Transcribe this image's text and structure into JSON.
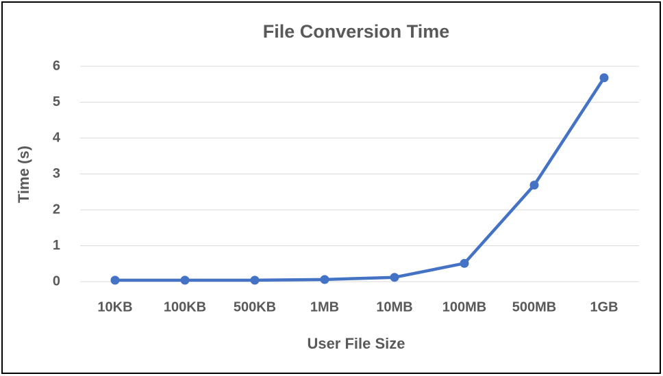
{
  "chart_data": {
    "type": "line",
    "title": "File Conversion Time",
    "x_label": "User File Size",
    "y_label": "Time (s)",
    "categories": [
      "10KB",
      "100KB",
      "500KB",
      "1MB",
      "10MB",
      "100MB",
      "500MB",
      "1GB"
    ],
    "series": [
      {
        "name": "Time (s)",
        "color": "#4472c4",
        "values": [
          0.04,
          0.04,
          0.04,
          0.06,
          0.12,
          0.51,
          2.69,
          5.68
        ]
      }
    ],
    "ylim": [
      0,
      6
    ],
    "yticks": [
      0,
      1,
      2,
      3,
      4,
      5,
      6
    ],
    "grid": true
  }
}
